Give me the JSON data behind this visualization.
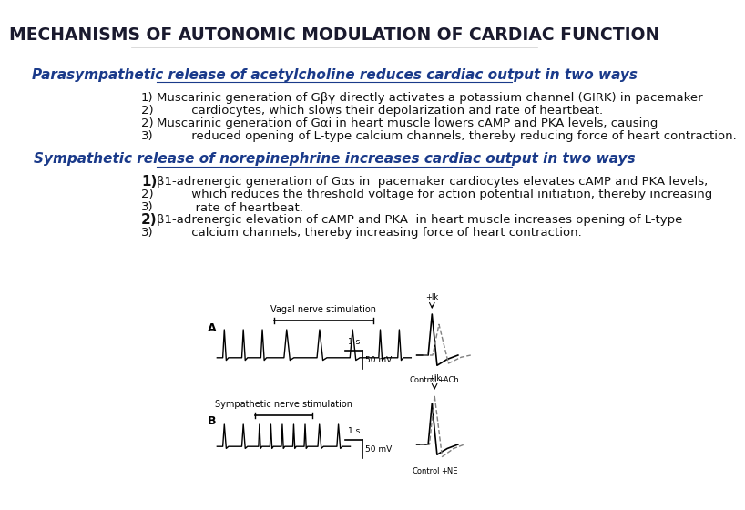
{
  "title": "MECHANISMS OF AUTONOMIC MODULATION OF CARDIAC FUNCTION",
  "title_color": "#1a1a2e",
  "title_fontsize": 13.5,
  "title_bold": true,
  "section1_header": "Parasympathetic release of acetylcholine reduces cardiac output in two ways",
  "section1_color": "#1a3a8a",
  "section1_underline": true,
  "section1_italic": true,
  "section1_fontsize": 11,
  "section1_lines": [
    [
      "1)",
      "Muscarinic generation of Gβγ directly activates a potassium channel (GIRK) in pacemaker"
    ],
    [
      "2)",
      "         cardiocytes, which slows their depolarization and rate of heartbeat."
    ],
    [
      "2)",
      "Muscarinic generation of Gαi in heart muscle lowers cAMP and PKA levels, causing"
    ],
    [
      "3)",
      "         reduced opening of L-type calcium channels, thereby reducing force of heart contraction."
    ]
  ],
  "section1_text_color": "#111111",
  "section1_text_fontsize": 9.5,
  "section2_header": "Sympathetic release of norepinephrine increases cardiac output in two ways",
  "section2_color": "#1a3a8a",
  "section2_underline": true,
  "section2_italic": true,
  "section2_fontsize": 11,
  "section2_lines": [
    [
      "1)",
      "β1-adrenergic generation of Gαs in  pacemaker cardiocytes elevates cAMP and PKA levels,"
    ],
    [
      "2)",
      "         which reduces the threshold voltage for action potential initiation, thereby increasing"
    ],
    [
      "3)",
      "          rate of heartbeat."
    ],
    [
      "2)",
      "β1-adrenergic elevation of cAMP and PKA  in heart muscle increases opening of L-type"
    ],
    [
      "3)",
      "         calcium channels, thereby increasing force of heart contraction."
    ]
  ],
  "section2_text_color": "#111111",
  "section2_text_fontsize": 9.5,
  "bg_color": "#ffffff",
  "image_A_label": "A",
  "image_B_label": "B",
  "vagal_label": "Vagal nerve stimulation",
  "sympathetic_label": "Sympathetic nerve stimulation",
  "scale_label_A": "50 mV",
  "scale_label_B": "50 mV",
  "control_label": "Control",
  "nach_label": "+ACh",
  "ne_label": "+NE",
  "time_label_A": "1 s",
  "time_label_B": "1 s"
}
